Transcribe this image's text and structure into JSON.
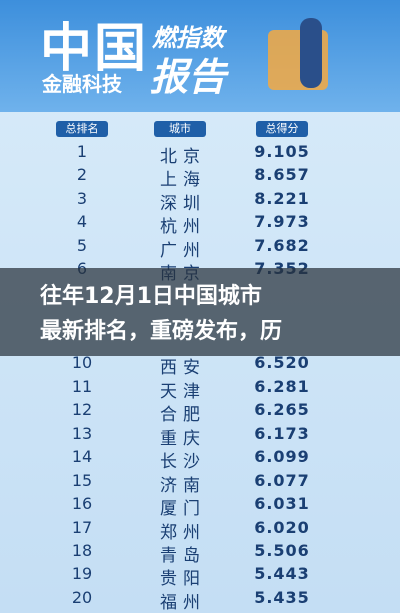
{
  "header": {
    "brand_big": "中国",
    "brand_small": "金融科技",
    "report_top": "燃指数",
    "report_bottom": "报告"
  },
  "table": {
    "columns": [
      "总排名",
      "城市",
      "总得分"
    ],
    "rows": [
      [
        "1",
        "北京",
        "9.105"
      ],
      [
        "2",
        "上海",
        "8.657"
      ],
      [
        "3",
        "深圳",
        "8.221"
      ],
      [
        "4",
        "杭州",
        "7.973"
      ],
      [
        "5",
        "广州",
        "7.682"
      ],
      [
        "6",
        "南京",
        "7.352"
      ],
      [
        "10",
        "西安",
        "6.520"
      ],
      [
        "11",
        "天津",
        "6.281"
      ],
      [
        "12",
        "合肥",
        "6.265"
      ],
      [
        "13",
        "重庆",
        "6.173"
      ],
      [
        "14",
        "长沙",
        "6.099"
      ],
      [
        "15",
        "济南",
        "6.077"
      ],
      [
        "16",
        "厦门",
        "6.031"
      ],
      [
        "17",
        "郑州",
        "6.020"
      ],
      [
        "18",
        "青岛",
        "5.506"
      ],
      [
        "19",
        "贵阳",
        "5.443"
      ],
      [
        "20",
        "福州",
        "5.435"
      ]
    ]
  },
  "overlay": {
    "lines": [
      "往年12月1日中国城市",
      "最新排名，重磅发布，历"
    ]
  }
}
